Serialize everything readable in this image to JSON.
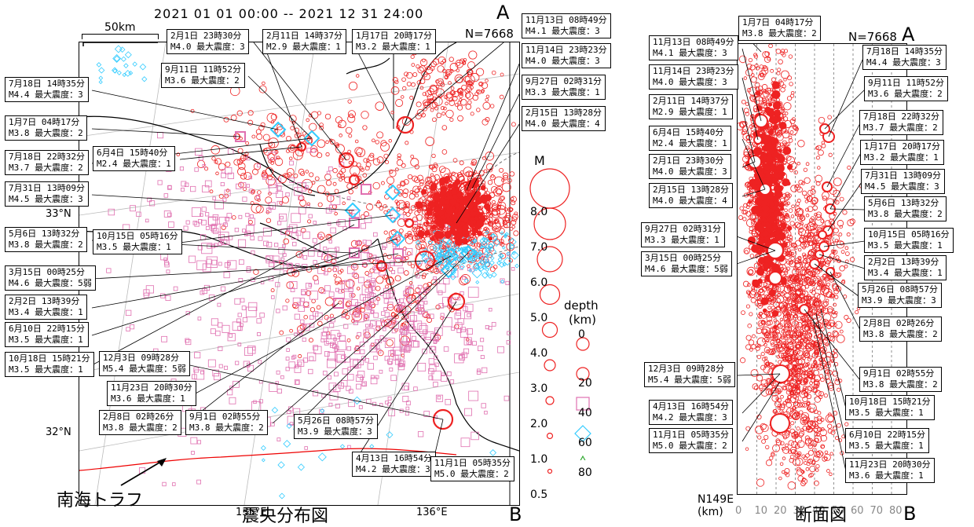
{
  "period": "2021 01 01 00:00 -- 2021 12 31 24:00",
  "count": "N=7668",
  "scale_text": "50km",
  "point_a": "A",
  "point_b": "B",
  "lat_33": "33°N",
  "lat_32": "32°N",
  "lon_135": "135°E",
  "lon_136": "136°E",
  "nankai_label": "南海トラフ",
  "map_title": "震央分布図",
  "section_title": "断面図",
  "section_x_label": "N149E",
  "section_x_unit": "(km)",
  "section_ticks": [
    "0",
    "10",
    "20",
    "30",
    "40",
    "50",
    "60",
    "70",
    "80"
  ],
  "legend": {
    "m_title": "M",
    "magnitudes": [
      "8.0",
      "7.0",
      "6.0",
      "5.0",
      "4.0",
      "3.0",
      "2.0",
      "1.0",
      "0.5"
    ],
    "depth_title": "depth",
    "depth_unit": "(km)",
    "depths": [
      "0",
      "20",
      "40",
      "60",
      "80"
    ]
  },
  "map_labels": [
    {
      "l1": "2月1日 23時30分",
      "l2": "M4.0 最大震度：3"
    },
    {
      "l1": "2月11日 14時37分",
      "l2": "M2.9 最大震度：1"
    },
    {
      "l1": "1月17日 20時17分",
      "l2": "M3.2 最大震度：1"
    },
    {
      "l1": "11月13日 08時49分",
      "l2": "M4.1 最大震度：3"
    },
    {
      "l1": "9月11日 11時52分",
      "l2": "M3.6 最大震度：2"
    },
    {
      "l1": "11月14日 23時23分",
      "l2": "M4.0 最大震度：3"
    },
    {
      "l1": "7月18日 14時35分",
      "l2": "M4.4 最大震度：3"
    },
    {
      "l1": "9月27日 02時31分",
      "l2": "M3.3 最大震度：1"
    },
    {
      "l1": "1月7日 04時17分",
      "l2": "M3.8 最大震度：2"
    },
    {
      "l1": "2月15日 13時28分",
      "l2": "M4.0 最大震度：4"
    },
    {
      "l1": "6月4日 15時40分",
      "l2": "M2.4 最大震度：1"
    },
    {
      "l1": "7月18日 22時32分",
      "l2": "M3.7 最大震度：2"
    },
    {
      "l1": "7月31日 13時09分",
      "l2": "M4.5 最大震度：3"
    },
    {
      "l1": "5月6日 13時32分",
      "l2": "M3.8 最大震度：2"
    },
    {
      "l1": "10月15日 05時16分",
      "l2": "M3.5 最大震度：1"
    },
    {
      "l1": "3月15日 00時25分",
      "l2": "M4.6 最大震度：5弱"
    },
    {
      "l1": "2月2日 13時39分",
      "l2": "M3.4 最大震度：1"
    },
    {
      "l1": "6月10日 22時15分",
      "l2": "M3.5 最大震度：1"
    },
    {
      "l1": "12月3日 09時28分",
      "l2": "M5.4 最大震度：5弱"
    },
    {
      "l1": "10月18日 15時21分",
      "l2": "M3.5 最大震度：1"
    },
    {
      "l1": "11月23日 20時30分",
      "l2": "M3.6 最大震度：1"
    },
    {
      "l1": "2月8日 02時26分",
      "l2": "M3.8 最大震度：2"
    },
    {
      "l1": "9月1日 02時55分",
      "l2": "M3.8 最大震度：2"
    },
    {
      "l1": "5月26日 08時57分",
      "l2": "M3.9 最大震度：3"
    },
    {
      "l1": "4月13日 16時54分",
      "l2": "M4.2 最大震度：3"
    },
    {
      "l1": "11月1日 05時35分",
      "l2": "M5.0 最大震度：2"
    }
  ],
  "section_labels": [
    {
      "l1": "1月7日 04時17分",
      "l2": "M3.8 最大震度：2"
    },
    {
      "l1": "11月13日 08時49分",
      "l2": "M4.1 最大震度：3"
    },
    {
      "l1": "7月18日 14時35分",
      "l2": "M4.4 最大震度：3"
    },
    {
      "l1": "11月14日 23時23分",
      "l2": "M4.0 最大震度：3"
    },
    {
      "l1": "9月11日 11時52分",
      "l2": "M3.6 最大震度：2"
    },
    {
      "l1": "2月11日 14時37分",
      "l2": "M2.9 最大震度：1"
    },
    {
      "l1": "7月18日 22時32分",
      "l2": "M3.7 最大震度：2"
    },
    {
      "l1": "6月4日 15時40分",
      "l2": "M2.4 最大震度：1"
    },
    {
      "l1": "1月17日 20時17分",
      "l2": "M3.2 最大震度：1"
    },
    {
      "l1": "2月1日 23時30分",
      "l2": "M4.0 最大震度：3"
    },
    {
      "l1": "7月31日 13時09分",
      "l2": "M4.5 最大震度：3"
    },
    {
      "l1": "2月15日 13時28分",
      "l2": "M4.0 最大震度：4"
    },
    {
      "l1": "5月6日 13時32分",
      "l2": "M3.8 最大震度：2"
    },
    {
      "l1": "9月27日 02時31分",
      "l2": "M3.3 最大震度：1"
    },
    {
      "l1": "10月15日 05時16分",
      "l2": "M3.5 最大震度：1"
    },
    {
      "l1": "3月15日 00時25分",
      "l2": "M4.6 最大震度：5弱"
    },
    {
      "l1": "2月2日 13時39分",
      "l2": "M3.4 最大震度：1"
    },
    {
      "l1": "5月26日 08時57分",
      "l2": "M3.9 最大震度：3"
    },
    {
      "l1": "2月8日 02時26分",
      "l2": "M3.8 最大震度：2"
    },
    {
      "l1": "12月3日 09時28分",
      "l2": "M5.4 最大震度：5弱"
    },
    {
      "l1": "9月1日 02時55分",
      "l2": "M3.8 最大震度：2"
    },
    {
      "l1": "4月13日 16時54分",
      "l2": "M4.2 最大震度：3"
    },
    {
      "l1": "10月18日 15時21分",
      "l2": "M3.5 最大震度：1"
    },
    {
      "l1": "11月1日 05時35分",
      "l2": "M5.0 最大震度：2"
    },
    {
      "l1": "6月10日 22時15分",
      "l2": "M3.5 最大震度：1"
    },
    {
      "l1": "11月23日 20時30分",
      "l2": "M3.6 最大震度：1"
    }
  ]
}
